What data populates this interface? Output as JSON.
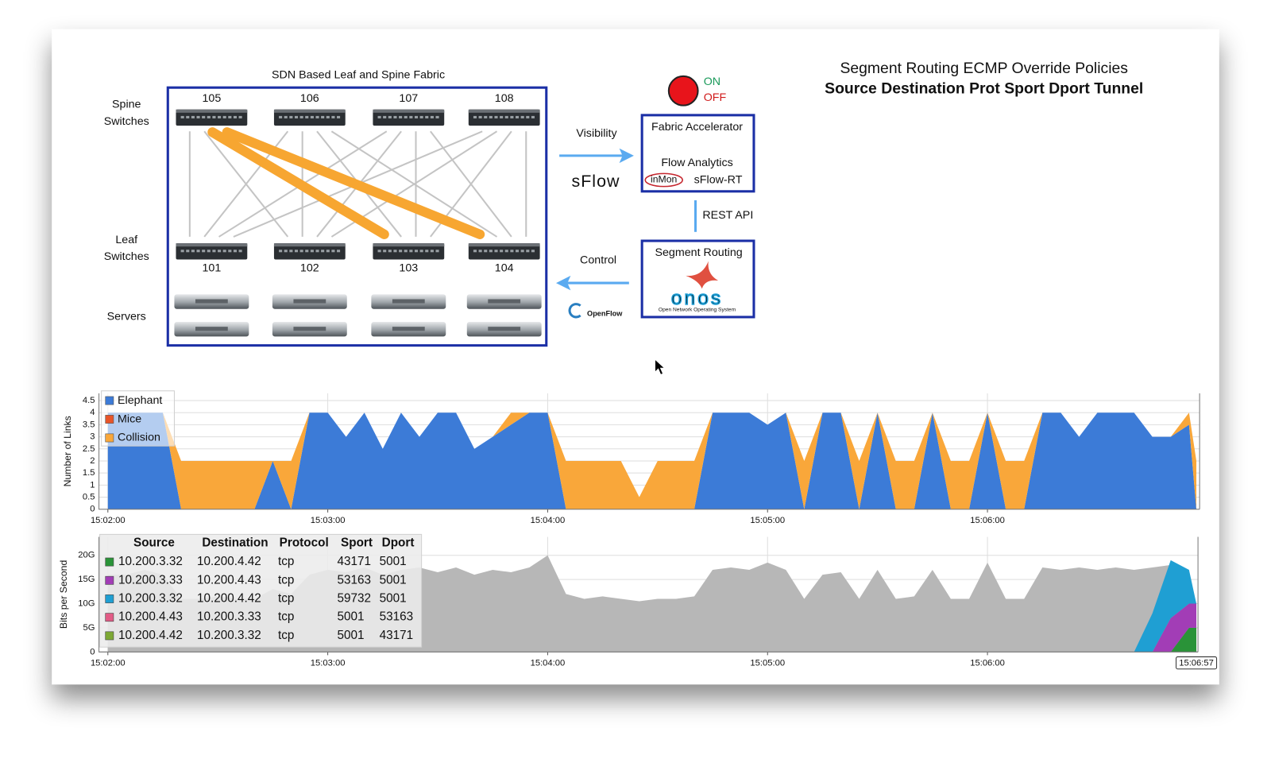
{
  "header": {
    "title": "Segment Routing ECMP Override Policies",
    "subtitle": "Source Destination Prot Sport Dport Tunnel"
  },
  "diagram": {
    "title": "SDN Based Leaf and Spine Fabric",
    "spine_label": [
      "Spine",
      "Switches"
    ],
    "leaf_label": [
      "Leaf",
      "Switches"
    ],
    "servers_label": "Servers",
    "spine_switches": [
      "105",
      "106",
      "107",
      "108"
    ],
    "leaf_switches": [
      "101",
      "102",
      "103",
      "104"
    ],
    "visibility": "Visibility",
    "sflow": "sFlow",
    "accelerator": {
      "title": "Fabric Accelerator",
      "subtitle": "Flow Analytics",
      "vendor": "inMon",
      "product": "sFlow-RT"
    },
    "rest_api": "REST API",
    "control": "Control",
    "controller": {
      "title": "Segment Routing",
      "logo": "onos",
      "tagline": "Open Network Operating System"
    },
    "openflow": "OpenFlow",
    "switch": {
      "on": "ON",
      "off": "OFF"
    }
  },
  "chart_data": [
    {
      "type": "area",
      "stacked": true,
      "ylabel": "Number of Links",
      "legend": "top-left",
      "grid": true,
      "x": [
        "15:02:00",
        "15:02:05",
        "15:02:10",
        "15:02:15",
        "15:02:20",
        "15:02:25",
        "15:02:30",
        "15:02:35",
        "15:02:40",
        "15:02:45",
        "15:02:50",
        "15:02:55",
        "15:03:00",
        "15:03:05",
        "15:03:10",
        "15:03:15",
        "15:03:20",
        "15:03:25",
        "15:03:30",
        "15:03:35",
        "15:03:40",
        "15:03:45",
        "15:03:50",
        "15:03:55",
        "15:04:00",
        "15:04:05",
        "15:04:10",
        "15:04:15",
        "15:04:20",
        "15:04:25",
        "15:04:30",
        "15:04:35",
        "15:04:40",
        "15:04:45",
        "15:04:50",
        "15:04:55",
        "15:05:00",
        "15:05:05",
        "15:05:10",
        "15:05:15",
        "15:05:20",
        "15:05:25",
        "15:05:30",
        "15:05:35",
        "15:05:40",
        "15:05:45",
        "15:05:50",
        "15:05:55",
        "15:06:00",
        "15:06:05",
        "15:06:10",
        "15:06:15",
        "15:06:20",
        "15:06:25",
        "15:06:30",
        "15:06:35",
        "15:06:40",
        "15:06:45",
        "15:06:50",
        "15:06:55",
        "15:06:57"
      ],
      "xlim": [
        "15:02:00",
        "15:06:57"
      ],
      "xticks": [
        "15:02:00",
        "15:03:00",
        "15:04:00",
        "15:05:00",
        "15:06:00"
      ],
      "ylim": [
        0,
        4.5
      ],
      "yticks": [
        0,
        0.5,
        1,
        1.5,
        2,
        2.5,
        3,
        3.5,
        4,
        4.5
      ],
      "series": [
        {
          "name": "Elephant",
          "color": "#3c7bd7",
          "values": [
            4,
            4,
            4,
            4,
            0,
            0,
            0,
            0,
            0,
            2,
            0,
            4,
            4,
            3,
            4,
            2.5,
            4,
            3,
            4,
            4,
            2.5,
            3,
            3.5,
            4,
            4,
            0,
            0,
            0,
            0,
            0,
            0,
            0,
            0,
            4,
            4,
            4,
            3.5,
            4,
            0,
            4,
            4,
            0,
            4,
            0,
            0,
            4,
            0,
            0,
            4,
            0,
            0,
            4,
            4,
            3,
            4,
            4,
            4,
            3,
            3,
            3.5,
            0
          ]
        },
        {
          "name": "Mice",
          "color": "#e8552a",
          "values": [
            0,
            0,
            0,
            0,
            0,
            0,
            0,
            0,
            0,
            0,
            0,
            0,
            0,
            0,
            0,
            0,
            0,
            0,
            0,
            0,
            0,
            0,
            0,
            0,
            0,
            0,
            0,
            0,
            0,
            0,
            0,
            0,
            0,
            0,
            0,
            0,
            0,
            0,
            0,
            0,
            0,
            0,
            0,
            0,
            0,
            0,
            0,
            0,
            0,
            0,
            0,
            0,
            0,
            0,
            0,
            0,
            0,
            0,
            0,
            0,
            0
          ]
        },
        {
          "name": "Collision",
          "color": "#f9a73a",
          "values": [
            0,
            0,
            0,
            0,
            2,
            2,
            2,
            2,
            2,
            0,
            2,
            0,
            0,
            0,
            0,
            0,
            0,
            0,
            0,
            0,
            0,
            0,
            0.5,
            0,
            0,
            2,
            2,
            2,
            2,
            0.5,
            2,
            2,
            2,
            0,
            0,
            0,
            0,
            0,
            2,
            0,
            0,
            2,
            0,
            2,
            2,
            0,
            2,
            2,
            0,
            2,
            2,
            0,
            0,
            0,
            0,
            0,
            0,
            0,
            0,
            0.5,
            2
          ]
        }
      ]
    },
    {
      "type": "area",
      "stacked": true,
      "ylabel": "Bits per Second",
      "grid": true,
      "cursor_label": "15:06:57",
      "x": [
        "15:02:00",
        "15:02:05",
        "15:02:10",
        "15:02:15",
        "15:02:20",
        "15:02:25",
        "15:02:30",
        "15:02:35",
        "15:02:40",
        "15:02:45",
        "15:02:50",
        "15:02:55",
        "15:03:00",
        "15:03:05",
        "15:03:10",
        "15:03:15",
        "15:03:20",
        "15:03:25",
        "15:03:30",
        "15:03:35",
        "15:03:40",
        "15:03:45",
        "15:03:50",
        "15:03:55",
        "15:04:00",
        "15:04:05",
        "15:04:10",
        "15:04:15",
        "15:04:20",
        "15:04:25",
        "15:04:30",
        "15:04:35",
        "15:04:40",
        "15:04:45",
        "15:04:50",
        "15:04:55",
        "15:05:00",
        "15:05:05",
        "15:05:10",
        "15:05:15",
        "15:05:20",
        "15:05:25",
        "15:05:30",
        "15:05:35",
        "15:05:40",
        "15:05:45",
        "15:05:50",
        "15:05:55",
        "15:06:00",
        "15:06:05",
        "15:06:10",
        "15:06:15",
        "15:06:20",
        "15:06:25",
        "15:06:30",
        "15:06:35",
        "15:06:40",
        "15:06:45",
        "15:06:50",
        "15:06:55",
        "15:06:57"
      ],
      "xlim": [
        "15:02:00",
        "15:06:57"
      ],
      "xticks": [
        "15:02:00",
        "15:03:00",
        "15:04:00",
        "15:05:00",
        "15:06:00"
      ],
      "ylim": [
        0,
        23500000000
      ],
      "yticks": [
        0,
        {
          "value": 5000000000.0,
          "label": "5G"
        },
        {
          "value": 10000000000.0,
          "label": "10G"
        },
        {
          "value": 15000000000.0,
          "label": "15G"
        },
        {
          "value": 20000000000.0,
          "label": "20G"
        }
      ],
      "background": {
        "color": "#b7b7b7",
        "values": [
          16000000000.0,
          16000000000.0,
          17000000000.0,
          16000000000.0,
          11000000000.0,
          11000000000.0,
          11500000000.0,
          11000000000.0,
          11000000000.0,
          13000000000.0,
          12000000000.0,
          16000000000.0,
          17000000000.0,
          16500000000.0,
          17500000000.0,
          16000000000.0,
          17000000000.0,
          17500000000.0,
          16500000000.0,
          17500000000.0,
          16000000000.0,
          17000000000.0,
          16500000000.0,
          17500000000.0,
          20000000000.0,
          12000000000.0,
          11000000000.0,
          11500000000.0,
          11000000000.0,
          10500000000.0,
          11000000000.0,
          11000000000.0,
          11500000000.0,
          17000000000.0,
          17500000000.0,
          17000000000.0,
          18500000000.0,
          17000000000.0,
          11000000000.0,
          16000000000.0,
          16500000000.0,
          11000000000.0,
          17000000000.0,
          11000000000.0,
          11500000000.0,
          17000000000.0,
          11000000000.0,
          11000000000.0,
          18500000000.0,
          11000000000.0,
          11000000000.0,
          17500000000.0,
          17000000000.0,
          17500000000.0,
          17000000000.0,
          17500000000.0,
          17000000000.0,
          17500000000.0,
          18000000000.0,
          14000000000.0,
          10000000000.0
        ]
      },
      "table": {
        "columns": [
          "Source",
          "Destination",
          "Protocol",
          "Sport",
          "Dport"
        ],
        "rows": [
          [
            "10.200.3.32",
            "10.200.4.42",
            "tcp",
            43171,
            5001
          ],
          [
            "10.200.3.33",
            "10.200.4.43",
            "tcp",
            53163,
            5001
          ],
          [
            "10.200.3.32",
            "10.200.4.42",
            "tcp",
            59732,
            5001
          ],
          [
            "10.200.4.43",
            "10.200.3.33",
            "tcp",
            5001,
            53163
          ],
          [
            "10.200.4.42",
            "10.200.3.32",
            "tcp",
            5001,
            43171
          ]
        ]
      },
      "series": [
        {
          "color": "#2a9338",
          "values": [
            0,
            0,
            0,
            0,
            0,
            0,
            0,
            0,
            0,
            0,
            0,
            0,
            0,
            0,
            0,
            0,
            0,
            0,
            0,
            0,
            0,
            0,
            0,
            0,
            0,
            0,
            0,
            0,
            0,
            0,
            0,
            0,
            0,
            0,
            0,
            0,
            0,
            0,
            0,
            0,
            0,
            0,
            0,
            0,
            0,
            0,
            0,
            0,
            0,
            0,
            0,
            0,
            0,
            0,
            0,
            0,
            0,
            0,
            0,
            5000000000.0,
            5000000000.0
          ]
        },
        {
          "color": "#a23db6",
          "values": [
            0,
            0,
            0,
            0,
            0,
            0,
            0,
            0,
            0,
            0,
            0,
            0,
            0,
            0,
            0,
            0,
            0,
            0,
            0,
            0,
            0,
            0,
            0,
            0,
            0,
            0,
            0,
            0,
            0,
            0,
            0,
            0,
            0,
            0,
            0,
            0,
            0,
            0,
            0,
            0,
            0,
            0,
            0,
            0,
            0,
            0,
            0,
            0,
            0,
            0,
            0,
            0,
            0,
            0,
            0,
            0,
            0,
            0,
            7000000000.0,
            5000000000.0,
            5000000000.0
          ]
        },
        {
          "color": "#1f9fd3",
          "values": [
            0,
            0,
            0,
            0,
            0,
            0,
            0,
            0,
            0,
            0,
            0,
            0,
            0,
            0,
            0,
            0,
            0,
            0,
            0,
            0,
            0,
            0,
            0,
            0,
            0,
            0,
            0,
            0,
            0,
            0,
            0,
            0,
            0,
            0,
            0,
            0,
            0,
            0,
            0,
            0,
            0,
            0,
            0,
            0,
            0,
            0,
            0,
            0,
            0,
            0,
            0,
            0,
            0,
            0,
            0,
            0,
            0,
            8000000000.0,
            12000000000.0,
            7000000000.0,
            0
          ]
        },
        {
          "color": "#e25c86",
          "values": [
            0,
            0,
            0,
            0,
            0,
            0,
            0,
            0,
            0,
            0,
            0,
            0,
            0,
            0,
            0,
            0,
            0,
            0,
            0,
            0,
            0,
            0,
            0,
            0,
            0,
            0,
            0,
            0,
            0,
            0,
            0,
            0,
            0,
            0,
            0,
            0,
            0,
            0,
            0,
            0,
            0,
            0,
            0,
            0,
            0,
            0,
            0,
            0,
            0,
            0,
            0,
            0,
            0,
            0,
            0,
            0,
            0,
            0,
            0,
            0,
            0
          ]
        },
        {
          "color": "#7da834",
          "values": [
            0,
            0,
            0,
            0,
            0,
            0,
            0,
            0,
            0,
            0,
            0,
            0,
            0,
            0,
            0,
            0,
            0,
            0,
            0,
            0,
            0,
            0,
            0,
            0,
            0,
            0,
            0,
            0,
            0,
            0,
            0,
            0,
            0,
            0,
            0,
            0,
            0,
            0,
            0,
            0,
            0,
            0,
            0,
            0,
            0,
            0,
            0,
            0,
            0,
            0,
            0,
            0,
            0,
            0,
            0,
            0,
            0,
            0,
            0,
            0,
            0
          ]
        }
      ]
    }
  ]
}
